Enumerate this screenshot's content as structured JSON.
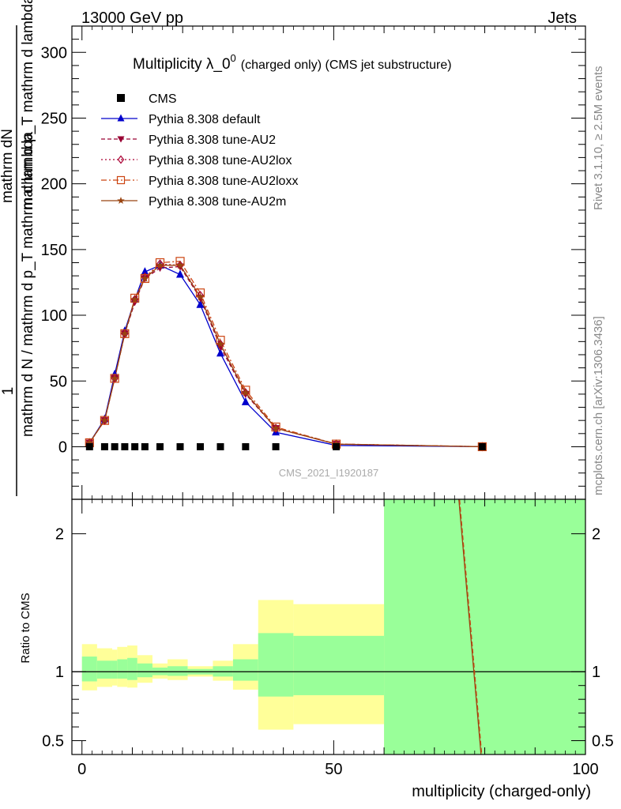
{
  "header": {
    "left": "13000 GeV pp",
    "right": "Jets"
  },
  "side_text": {
    "rivet": "Rivet 3.1.10, ≥ 2.5M events",
    "mcplots": "mcplots.cern.ch [arXiv:1306.3436]"
  },
  "colors": {
    "cms": "#000000",
    "default": "#0000cc",
    "au2": "#990033",
    "au2lox": "#aa0033",
    "au2loxx": "#cc4411",
    "au2m": "#994411",
    "band_yellow": "#ffff99",
    "band_green": "#99ff99"
  },
  "chart_data": [
    {
      "type": "line",
      "title": "Multiplicity λ_0",
      "title_sup": "0",
      "title_suffix": "(charged only) (CMS jet substructure)",
      "ylabel_parts": [
        "1",
        "mathrm d N / mathrm d p",
        "T",
        "mathrm d N",
        "mathrm d p",
        "T",
        "mathrm d lambda",
        "mathrm d lambda"
      ],
      "ylabel_numerator_top": "1",
      "ylabel_denominator_left": "mathrm d N / mathrm d p_T mathrm d lambda",
      "ylabel_right_numerator": "mathrm d",
      "ylabel_right_N": "N",
      "ylabel_right_denominator": "mathrm d p_T mathrm d lambda",
      "ylim": [
        -40,
        320
      ],
      "yticks": [
        0,
        50,
        100,
        150,
        200,
        250,
        300
      ],
      "xlim": [
        -2,
        100
      ],
      "watermark": "CMS_2021_I1920187",
      "legend": [
        {
          "label": "CMS",
          "key": "cms",
          "marker": "square",
          "line": "none"
        },
        {
          "label": "Pythia 8.308 default",
          "key": "default",
          "marker": "triangle-up",
          "line": "solid"
        },
        {
          "label": "Pythia 8.308 tune-AU2",
          "key": "au2",
          "marker": "triangle-down",
          "line": "dashed"
        },
        {
          "label": "Pythia 8.308 tune-AU2lox",
          "key": "au2lox",
          "marker": "diamond-open",
          "line": "dotted"
        },
        {
          "label": "Pythia 8.308 tune-AU2loxx",
          "key": "au2loxx",
          "marker": "square-open",
          "line": "dashdot"
        },
        {
          "label": "Pythia 8.308 tune-AU2m",
          "key": "au2m",
          "marker": "star",
          "line": "solid"
        }
      ],
      "cms_x": [
        1.5,
        4.5,
        6.5,
        8.5,
        10.5,
        12.5,
        15.5,
        19.5,
        23.5,
        27.5,
        32.5,
        38.5,
        50.5,
        79.5
      ],
      "cms_y": [
        0,
        0,
        0,
        0,
        0,
        0,
        0,
        0,
        0,
        0,
        0,
        0,
        0,
        0
      ],
      "series": [
        {
          "name": "Pythia 8.308 default",
          "key": "default",
          "x": [
            1.5,
            4.5,
            6.5,
            8.5,
            10.5,
            12.5,
            15.5,
            19.5,
            23.5,
            27.5,
            32.5,
            38.5,
            50.5,
            79.5
          ],
          "y": [
            3,
            21,
            55,
            88,
            112,
            133,
            138,
            131,
            108,
            71,
            34,
            11,
            1,
            0
          ]
        },
        {
          "name": "Pythia 8.308 tune-AU2",
          "key": "au2",
          "x": [
            1.5,
            4.5,
            6.5,
            8.5,
            10.5,
            12.5,
            15.5,
            19.5,
            23.5,
            27.5,
            32.5,
            38.5,
            50.5,
            79.5
          ],
          "y": [
            3,
            20,
            52,
            86,
            110,
            128,
            136,
            137,
            113,
            76,
            40,
            14,
            2,
            0
          ]
        },
        {
          "name": "Pythia 8.308 tune-AU2lox",
          "key": "au2lox",
          "x": [
            1.5,
            4.5,
            6.5,
            8.5,
            10.5,
            12.5,
            15.5,
            19.5,
            23.5,
            27.5,
            32.5,
            38.5,
            50.5,
            79.5
          ],
          "y": [
            3,
            20,
            52,
            86,
            112,
            129,
            139,
            138,
            115,
            78,
            41,
            14,
            2,
            0
          ]
        },
        {
          "name": "Pythia 8.308 tune-AU2loxx",
          "key": "au2loxx",
          "x": [
            1.5,
            4.5,
            6.5,
            8.5,
            10.5,
            12.5,
            15.5,
            19.5,
            23.5,
            27.5,
            32.5,
            38.5,
            50.5,
            79.5
          ],
          "y": [
            3,
            20,
            52,
            86,
            113,
            128,
            140,
            141,
            117,
            81,
            43,
            15,
            2,
            0
          ]
        },
        {
          "name": "Pythia 8.308 tune-AU2m",
          "key": "au2m",
          "x": [
            1.5,
            4.5,
            6.5,
            8.5,
            10.5,
            12.5,
            15.5,
            19.5,
            23.5,
            27.5,
            32.5,
            38.5,
            50.5,
            79.5
          ],
          "y": [
            3,
            20,
            52,
            86,
            112,
            128,
            138,
            138,
            114,
            78,
            41,
            14,
            2,
            0
          ]
        }
      ]
    },
    {
      "type": "line",
      "ylabel": "Ratio to CMS",
      "xlabel": "multiplicity (charged-only)",
      "ylim": [
        0.4,
        2.25
      ],
      "yticks": [
        0.5,
        1,
        2
      ],
      "xlim": [
        -2,
        100
      ],
      "xticks": [
        0,
        50,
        100
      ],
      "bands": [
        {
          "x0": 0,
          "x1": 3,
          "yellow": [
            0.865,
            1.2
          ],
          "green": [
            0.93,
            1.11
          ]
        },
        {
          "x0": 3,
          "x1": 6,
          "yellow": [
            0.89,
            1.17
          ],
          "green": [
            0.95,
            1.08
          ]
        },
        {
          "x0": 6,
          "x1": 7,
          "yellow": [
            0.9,
            1.16
          ],
          "green": [
            0.95,
            1.08
          ]
        },
        {
          "x0": 7,
          "x1": 9,
          "yellow": [
            0.89,
            1.18
          ],
          "green": [
            0.95,
            1.09
          ]
        },
        {
          "x0": 9,
          "x1": 11,
          "yellow": [
            0.885,
            1.19
          ],
          "green": [
            0.94,
            1.1
          ]
        },
        {
          "x0": 11,
          "x1": 14,
          "yellow": [
            0.92,
            1.12
          ],
          "green": [
            0.96,
            1.06
          ]
        },
        {
          "x0": 14,
          "x1": 17,
          "yellow": [
            0.95,
            1.06
          ],
          "green": [
            0.975,
            1.03
          ]
        },
        {
          "x0": 17,
          "x1": 21,
          "yellow": [
            0.94,
            1.09
          ],
          "green": [
            0.97,
            1.04
          ]
        },
        {
          "x0": 21,
          "x1": 26,
          "yellow": [
            0.965,
            1.04
          ],
          "green": [
            0.98,
            1.02
          ]
        },
        {
          "x0": 26,
          "x1": 30,
          "yellow": [
            0.935,
            1.08
          ],
          "green": [
            0.965,
            1.04
          ]
        },
        {
          "x0": 30,
          "x1": 35,
          "yellow": [
            0.87,
            1.2
          ],
          "green": [
            0.935,
            1.09
          ]
        },
        {
          "x0": 35,
          "x1": 42,
          "yellow": [
            0.58,
            1.52
          ],
          "green": [
            0.82,
            1.28
          ]
        },
        {
          "x0": 42,
          "x1": 60,
          "yellow": [
            0.62,
            1.49
          ],
          "green": [
            0.83,
            1.26
          ]
        },
        {
          "x0": 60,
          "x1": 100,
          "yellow": [
            0.3,
            2.5
          ],
          "green": [
            0.3,
            2.5
          ]
        }
      ],
      "ratio_line": {
        "x": [
          74.5,
          79.5
        ],
        "y": [
          2.4,
          0.3
        ]
      }
    }
  ]
}
